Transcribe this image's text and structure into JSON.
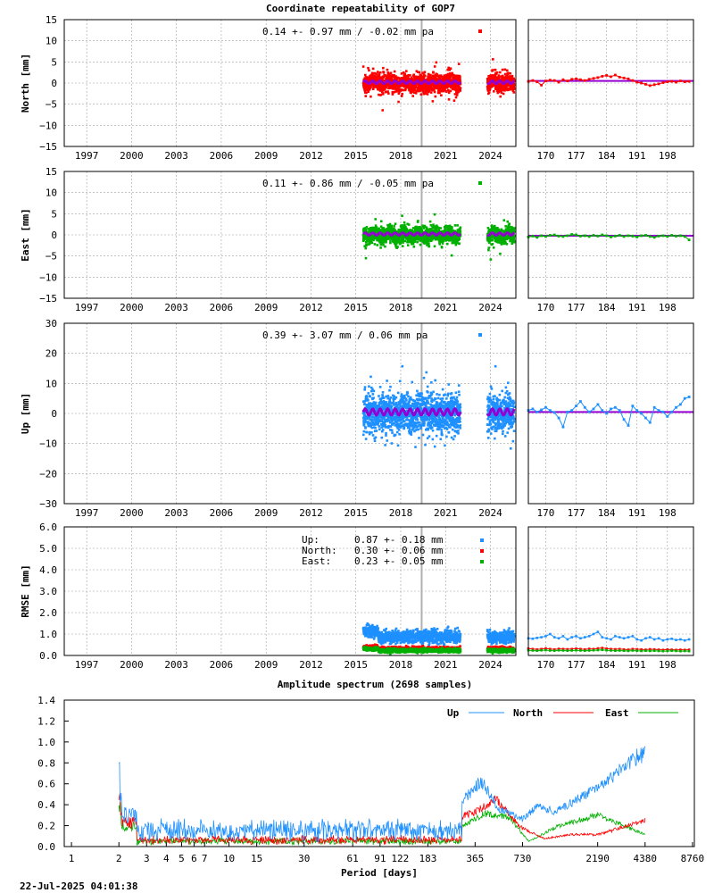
{
  "title": "Coordinate repeatability of GOP7",
  "spectrum_title": "Amplitude spectrum (2698 samples)",
  "timestamp": "22-Jul-2025 04:01:38",
  "colors": {
    "north": "#ff0000",
    "east": "#00b000",
    "up": "#1e90ff",
    "model": "#9400d3",
    "event_line": "#b0b0b0",
    "grid": "#a0a0a0"
  },
  "year_ticks": [
    "1997",
    "2000",
    "2003",
    "2006",
    "2009",
    "2012",
    "2015",
    "2018",
    "2021",
    "2024"
  ],
  "doy_ticks": [
    "170",
    "177",
    "184",
    "191",
    "198"
  ],
  "chart_data": [
    {
      "id": "north",
      "type": "scatter",
      "ylabel": "North [mm]",
      "ylim": [
        -15,
        15
      ],
      "yticks": [
        "15",
        "10",
        "5",
        "0",
        "−5",
        "−10",
        "−15"
      ],
      "stat": "0.14 +- 0.97 mm / -0.02 mm pa",
      "x_range": [
        "1995.5",
        "2025.7"
      ],
      "data_spans": [
        [
          "2015.5",
          "2022.0"
        ],
        [
          "2023.8",
          "2025.6"
        ]
      ],
      "scatter_sigma": 1.0,
      "event": "2019.4",
      "zoom_ylim": [
        -15,
        15
      ],
      "zoom_doy": [
        166,
        204
      ],
      "zoom_values": [
        0.4,
        0.6,
        0.3,
        -0.5,
        0.5,
        0.7,
        0.6,
        0.2,
        0.8,
        0.5,
        0.9,
        1.0,
        0.8,
        0.6,
        0.9,
        1.1,
        1.3,
        1.6,
        1.8,
        1.5,
        1.9,
        1.4,
        1.2,
        1.0,
        0.6,
        0.2,
        0.0,
        -0.3,
        -0.6,
        -0.4,
        -0.2,
        0.1,
        0.3,
        0.4,
        0.2,
        0.5,
        0.3,
        0.4
      ]
    },
    {
      "id": "east",
      "type": "scatter",
      "ylabel": "East [mm]",
      "ylim": [
        -15,
        15
      ],
      "yticks": [
        "15",
        "10",
        "5",
        "0",
        "−5",
        "−10",
        "−15"
      ],
      "stat": "0.11 +- 0.86 mm / -0.05 mm pa",
      "x_range": [
        "1995.5",
        "2025.7"
      ],
      "data_spans": [
        [
          "2015.5",
          "2022.0"
        ],
        [
          "2023.8",
          "2025.6"
        ]
      ],
      "scatter_sigma": 0.9,
      "event": "2019.4",
      "zoom_ylim": [
        -15,
        15
      ],
      "zoom_doy": [
        166,
        204
      ],
      "zoom_values": [
        -0.5,
        -0.3,
        -0.6,
        -0.2,
        -0.4,
        -0.1,
        0.0,
        -0.3,
        -0.4,
        -0.2,
        0.1,
        0.0,
        -0.3,
        -0.2,
        -0.4,
        -0.1,
        -0.3,
        0.0,
        -0.2,
        -0.5,
        -0.3,
        -0.1,
        -0.4,
        -0.2,
        -0.3,
        -0.5,
        -0.2,
        -0.1,
        -0.4,
        -0.6,
        -0.3,
        -0.2,
        -0.4,
        -0.1,
        -0.3,
        -0.2,
        -0.4,
        -1.2
      ]
    },
    {
      "id": "up",
      "type": "scatter",
      "ylabel": "Up [mm]",
      "ylim": [
        -30,
        30
      ],
      "yticks": [
        "30",
        "20",
        "10",
        "0",
        "−10",
        "−20",
        "−30"
      ],
      "stat": "0.39 +- 3.07 mm /  0.06 mm pa",
      "x_range": [
        "1995.5",
        "2025.7"
      ],
      "data_spans": [
        [
          "2015.5",
          "2022.0"
        ],
        [
          "2023.8",
          "2025.6"
        ]
      ],
      "scatter_sigma": 3.1,
      "event": "2019.4",
      "zoom_ylim": [
        -30,
        30
      ],
      "zoom_doy": [
        166,
        204
      ],
      "zoom_values": [
        1.0,
        1.5,
        0.5,
        1.2,
        2.0,
        1.0,
        0.3,
        -1.5,
        -4.5,
        0.5,
        1.0,
        2.5,
        4.0,
        2.0,
        0.5,
        1.5,
        3.0,
        1.0,
        0.0,
        1.5,
        2.0,
        1.0,
        -2.0,
        -4.0,
        2.5,
        1.0,
        0.0,
        -1.5,
        -3.0,
        2.0,
        1.0,
        0.5,
        -1.0,
        0.5,
        2.0,
        3.0,
        5.0,
        5.5
      ]
    },
    {
      "id": "rmse",
      "type": "scatter",
      "ylabel": "RMSE [mm]",
      "ylim": [
        0,
        6
      ],
      "yticks": [
        "6.0",
        "5.0",
        "4.0",
        "3.0",
        "2.0",
        "1.0",
        "0.0"
      ],
      "legend": [
        {
          "label": "Up:",
          "stat": "0.87 +- 0.18 mm",
          "mean": 0.87,
          "sigma": 0.18,
          "color_key": "up"
        },
        {
          "label": "North:",
          "stat": "0.30 +- 0.06 mm",
          "mean": 0.3,
          "sigma": 0.06,
          "color_key": "north"
        },
        {
          "label": "East:",
          "stat": "0.23 +- 0.05 mm",
          "mean": 0.23,
          "sigma": 0.05,
          "color_key": "east"
        }
      ],
      "x_range": [
        "1995.5",
        "2025.7"
      ],
      "data_spans": [
        [
          "2015.5",
          "2022.0"
        ],
        [
          "2023.8",
          "2025.6"
        ]
      ],
      "event": "2019.4",
      "zoom_ylim": [
        0,
        6
      ],
      "zoom_doy": [
        166,
        204
      ],
      "zoom_series": {
        "up": [
          0.8,
          0.78,
          0.82,
          0.85,
          0.9,
          1.0,
          0.85,
          0.8,
          0.9,
          0.75,
          0.85,
          0.9,
          0.8,
          0.85,
          0.9,
          1.0,
          1.1,
          0.85,
          0.8,
          0.75,
          0.9,
          0.85,
          0.8,
          0.85,
          0.9,
          0.75,
          0.7,
          0.8,
          0.85,
          0.75,
          0.8,
          0.7,
          0.75,
          0.78,
          0.72,
          0.75,
          0.7,
          0.75
        ],
        "north": [
          0.32,
          0.3,
          0.28,
          0.3,
          0.33,
          0.3,
          0.28,
          0.31,
          0.3,
          0.29,
          0.3,
          0.32,
          0.3,
          0.28,
          0.31,
          0.3,
          0.33,
          0.35,
          0.32,
          0.3,
          0.29,
          0.3,
          0.28,
          0.27,
          0.3,
          0.29,
          0.28,
          0.27,
          0.29,
          0.28,
          0.27,
          0.26,
          0.28,
          0.27,
          0.26,
          0.27,
          0.26,
          0.27
        ],
        "east": [
          0.24,
          0.23,
          0.22,
          0.24,
          0.25,
          0.23,
          0.22,
          0.24,
          0.23,
          0.22,
          0.23,
          0.24,
          0.23,
          0.22,
          0.23,
          0.24,
          0.25,
          0.26,
          0.24,
          0.23,
          0.22,
          0.23,
          0.22,
          0.21,
          0.23,
          0.22,
          0.21,
          0.22,
          0.21,
          0.22,
          0.21,
          0.2,
          0.21,
          0.22,
          0.21,
          0.2,
          0.21,
          0.2
        ]
      }
    },
    {
      "id": "spectrum",
      "type": "line",
      "title": "Amplitude spectrum (2698 samples)",
      "xlabel": "Period [days]",
      "xscale": "log",
      "xlim": [
        0.9,
        9000
      ],
      "ylim": [
        0,
        1.4
      ],
      "yticks": [
        "1.4",
        "1.2",
        "1.0",
        "0.8",
        "0.6",
        "0.4",
        "0.2",
        "0.0"
      ],
      "xticks": [
        "1",
        "2",
        "3",
        "4",
        "5",
        "6",
        "7",
        "10",
        "15",
        "30",
        "61",
        "91",
        "122",
        "183",
        "365",
        "730",
        "2190",
        "4380",
        "8760"
      ],
      "legend": [
        "Up",
        "North",
        "East"
      ],
      "legend_position": "top-right",
      "series": [
        {
          "name": "Up",
          "color_key": "up",
          "peaks": [
            [
              2.0,
              0.95
            ],
            [
              2.05,
              0.6
            ],
            [
              2.1,
              0.38
            ],
            [
              15,
              0.22
            ],
            [
              30,
              0.3
            ],
            [
              61,
              0.28
            ],
            [
              91,
              0.35
            ],
            [
              122,
              0.45
            ],
            [
              183,
              0.4
            ],
            [
              300,
              0.45
            ],
            [
              400,
              0.66
            ],
            [
              520,
              0.38
            ],
            [
              730,
              0.28
            ],
            [
              900,
              0.4
            ],
            [
              1200,
              0.35
            ],
            [
              2500,
              0.65
            ],
            [
              4380,
              0.96
            ]
          ],
          "noise": 0.12
        },
        {
          "name": "North",
          "color_key": "north",
          "peaks": [
            [
              2.0,
              0.66
            ],
            [
              2.1,
              0.3
            ],
            [
              30,
              0.08
            ],
            [
              120,
              0.12
            ],
            [
              200,
              0.2
            ],
            [
              365,
              0.35
            ],
            [
              500,
              0.48
            ],
            [
              700,
              0.2
            ],
            [
              1000,
              0.08
            ],
            [
              1500,
              0.12
            ],
            [
              2190,
              0.12
            ],
            [
              4380,
              0.26
            ]
          ],
          "noise": 0.05
        },
        {
          "name": "East",
          "color_key": "east",
          "peaks": [
            [
              2.0,
              0.6
            ],
            [
              2.1,
              0.25
            ],
            [
              30,
              0.06
            ],
            [
              150,
              0.1
            ],
            [
              300,
              0.2
            ],
            [
              420,
              0.33
            ],
            [
              600,
              0.3
            ],
            [
              800,
              0.05
            ],
            [
              1200,
              0.2
            ],
            [
              2190,
              0.32
            ],
            [
              4380,
              0.12
            ]
          ],
          "noise": 0.04
        }
      ]
    }
  ]
}
